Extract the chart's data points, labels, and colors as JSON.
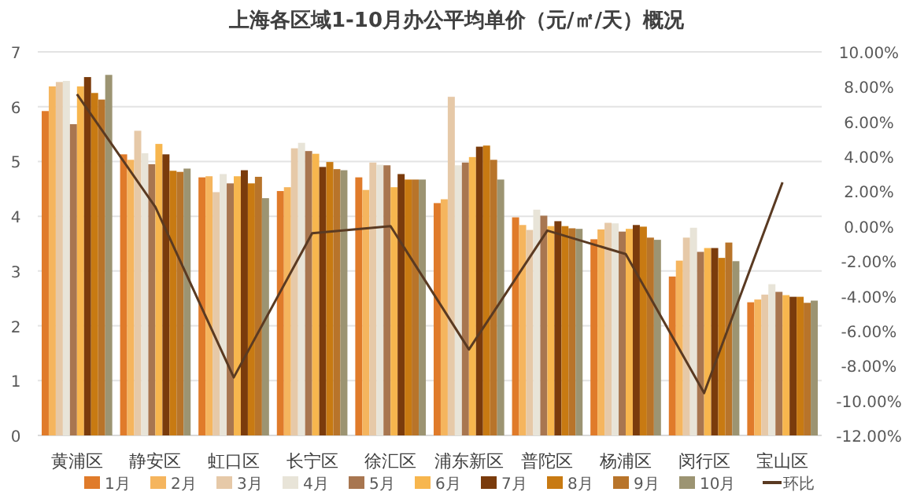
{
  "chart_data": {
    "type": "bar",
    "title": "上海各区域1-10月办公平均单价（元/㎡/天）概况",
    "categories": [
      "黄浦区",
      "静安区",
      "虹口区",
      "长宁区",
      "徐汇区",
      "浦东新区",
      "普陀区",
      "杨浦区",
      "闵行区",
      "宝山区"
    ],
    "series": [
      {
        "name": "1月",
        "color": "#e07b2a",
        "values": [
          5.92,
          5.13,
          4.71,
          4.46,
          4.71,
          4.24,
          3.98,
          3.58,
          2.9,
          2.43
        ]
      },
      {
        "name": "2月",
        "color": "#f5b55e",
        "values": [
          6.37,
          5.03,
          4.73,
          4.53,
          4.48,
          4.31,
          3.84,
          3.76,
          3.19,
          2.48
        ]
      },
      {
        "name": "3月",
        "color": "#e6c9a8",
        "values": [
          6.45,
          5.56,
          4.44,
          5.24,
          4.98,
          6.18,
          3.75,
          3.88,
          3.61,
          2.57
        ]
      },
      {
        "name": "4月",
        "color": "#e8e4d8",
        "values": [
          6.47,
          5.15,
          4.77,
          5.34,
          4.94,
          4.93,
          4.12,
          3.87,
          3.79,
          2.76
        ]
      },
      {
        "name": "5月",
        "color": "#a87650",
        "values": [
          5.68,
          4.95,
          4.6,
          5.19,
          4.93,
          4.98,
          4.01,
          3.72,
          3.35,
          2.62
        ]
      },
      {
        "name": "6月",
        "color": "#f7b64e",
        "values": [
          6.37,
          5.32,
          4.73,
          5.14,
          4.53,
          5.08,
          3.82,
          3.77,
          3.42,
          2.56
        ]
      },
      {
        "name": "7月",
        "color": "#7a3b0c",
        "values": [
          6.54,
          5.13,
          4.84,
          4.9,
          4.77,
          5.27,
          3.91,
          3.84,
          3.42,
          2.53
        ]
      },
      {
        "name": "8月",
        "color": "#c87a12",
        "values": [
          6.25,
          4.83,
          4.6,
          4.99,
          4.67,
          5.29,
          3.82,
          3.81,
          3.24,
          2.53
        ]
      },
      {
        "name": "9月",
        "color": "#b8742a",
        "values": [
          6.13,
          4.81,
          4.72,
          4.86,
          4.67,
          5.03,
          3.78,
          3.61,
          3.52,
          2.42
        ]
      },
      {
        "name": "10月",
        "color": "#9c9472",
        "values": [
          6.58,
          4.87,
          4.33,
          4.84,
          4.67,
          4.67,
          3.77,
          3.57,
          3.18,
          2.46
        ]
      },
      {
        "name": "环比",
        "type": "line",
        "axis": "y2",
        "color": "#5a3a22",
        "values": [
          7.57,
          1.1,
          -8.67,
          -0.4,
          0.0,
          -7.07,
          -0.25,
          -1.6,
          -9.57,
          2.52
        ]
      }
    ],
    "ylim": [
      0,
      7
    ],
    "yticks": [
      0,
      1,
      2,
      3,
      4,
      5,
      6,
      7
    ],
    "y2lim": [
      -12,
      10
    ],
    "y2ticks": [
      {
        "value": 10,
        "label": "10.00%"
      },
      {
        "value": 8,
        "label": "8.00%"
      },
      {
        "value": 6,
        "label": "6.00%"
      },
      {
        "value": 4,
        "label": "4.00%"
      },
      {
        "value": 2,
        "label": "2.00%"
      },
      {
        "value": 0,
        "label": "0.00%"
      },
      {
        "value": -2,
        "label": "-2.00%"
      },
      {
        "value": -4,
        "label": "-4.00%"
      },
      {
        "value": -6,
        "label": "-6.00%"
      },
      {
        "value": -8,
        "label": "-8.00%"
      },
      {
        "value": -10,
        "label": "-10.00%"
      },
      {
        "value": -12,
        "label": "-12.00%"
      }
    ],
    "grid": "y",
    "legend": "bottom"
  }
}
